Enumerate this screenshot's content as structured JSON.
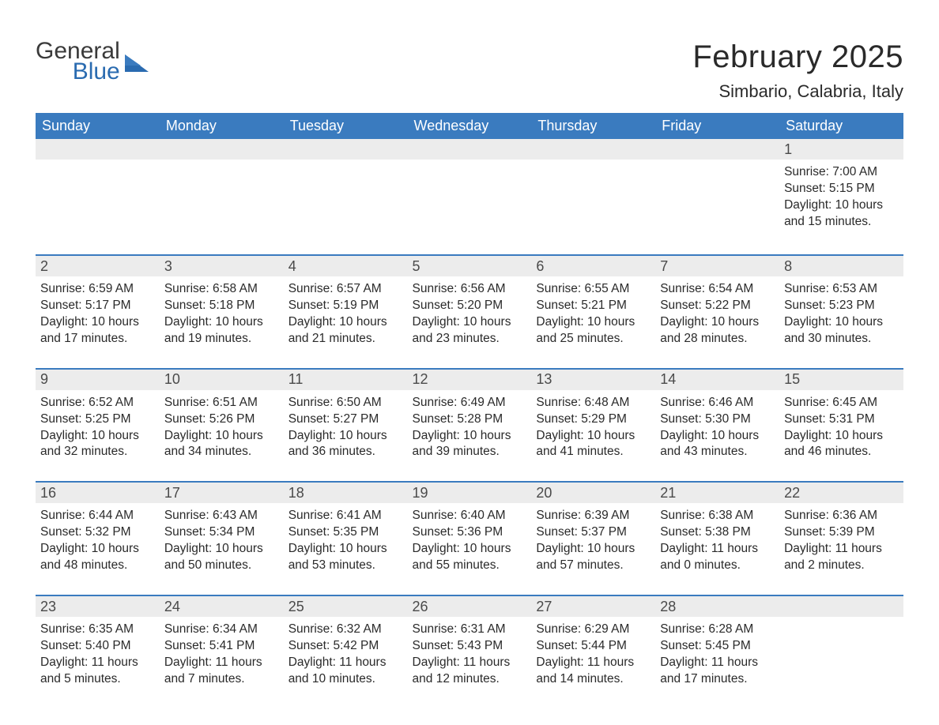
{
  "logo": {
    "word1": "General",
    "word2": "Blue"
  },
  "title": "February 2025",
  "location": "Simbario, Calabria, Italy",
  "colors": {
    "header_bg": "#3a7bbf",
    "header_text": "#ffffff",
    "daynum_bg": "#ececec",
    "text": "#2a2a2a",
    "logo_blue": "#2a6bb0",
    "page_bg": "#ffffff"
  },
  "fonts": {
    "title_size_pt": 30,
    "location_size_pt": 17,
    "dow_size_pt": 14,
    "daynum_size_pt": 14,
    "body_size_pt": 12
  },
  "dow": [
    "Sunday",
    "Monday",
    "Tuesday",
    "Wednesday",
    "Thursday",
    "Friday",
    "Saturday"
  ],
  "weeks": [
    [
      null,
      null,
      null,
      null,
      null,
      null,
      {
        "d": "1",
        "sunrise": "Sunrise: 7:00 AM",
        "sunset": "Sunset: 5:15 PM",
        "daylight": "Daylight: 10 hours and 15 minutes."
      }
    ],
    [
      {
        "d": "2",
        "sunrise": "Sunrise: 6:59 AM",
        "sunset": "Sunset: 5:17 PM",
        "daylight": "Daylight: 10 hours and 17 minutes."
      },
      {
        "d": "3",
        "sunrise": "Sunrise: 6:58 AM",
        "sunset": "Sunset: 5:18 PM",
        "daylight": "Daylight: 10 hours and 19 minutes."
      },
      {
        "d": "4",
        "sunrise": "Sunrise: 6:57 AM",
        "sunset": "Sunset: 5:19 PM",
        "daylight": "Daylight: 10 hours and 21 minutes."
      },
      {
        "d": "5",
        "sunrise": "Sunrise: 6:56 AM",
        "sunset": "Sunset: 5:20 PM",
        "daylight": "Daylight: 10 hours and 23 minutes."
      },
      {
        "d": "6",
        "sunrise": "Sunrise: 6:55 AM",
        "sunset": "Sunset: 5:21 PM",
        "daylight": "Daylight: 10 hours and 25 minutes."
      },
      {
        "d": "7",
        "sunrise": "Sunrise: 6:54 AM",
        "sunset": "Sunset: 5:22 PM",
        "daylight": "Daylight: 10 hours and 28 minutes."
      },
      {
        "d": "8",
        "sunrise": "Sunrise: 6:53 AM",
        "sunset": "Sunset: 5:23 PM",
        "daylight": "Daylight: 10 hours and 30 minutes."
      }
    ],
    [
      {
        "d": "9",
        "sunrise": "Sunrise: 6:52 AM",
        "sunset": "Sunset: 5:25 PM",
        "daylight": "Daylight: 10 hours and 32 minutes."
      },
      {
        "d": "10",
        "sunrise": "Sunrise: 6:51 AM",
        "sunset": "Sunset: 5:26 PM",
        "daylight": "Daylight: 10 hours and 34 minutes."
      },
      {
        "d": "11",
        "sunrise": "Sunrise: 6:50 AM",
        "sunset": "Sunset: 5:27 PM",
        "daylight": "Daylight: 10 hours and 36 minutes."
      },
      {
        "d": "12",
        "sunrise": "Sunrise: 6:49 AM",
        "sunset": "Sunset: 5:28 PM",
        "daylight": "Daylight: 10 hours and 39 minutes."
      },
      {
        "d": "13",
        "sunrise": "Sunrise: 6:48 AM",
        "sunset": "Sunset: 5:29 PM",
        "daylight": "Daylight: 10 hours and 41 minutes."
      },
      {
        "d": "14",
        "sunrise": "Sunrise: 6:46 AM",
        "sunset": "Sunset: 5:30 PM",
        "daylight": "Daylight: 10 hours and 43 minutes."
      },
      {
        "d": "15",
        "sunrise": "Sunrise: 6:45 AM",
        "sunset": "Sunset: 5:31 PM",
        "daylight": "Daylight: 10 hours and 46 minutes."
      }
    ],
    [
      {
        "d": "16",
        "sunrise": "Sunrise: 6:44 AM",
        "sunset": "Sunset: 5:32 PM",
        "daylight": "Daylight: 10 hours and 48 minutes."
      },
      {
        "d": "17",
        "sunrise": "Sunrise: 6:43 AM",
        "sunset": "Sunset: 5:34 PM",
        "daylight": "Daylight: 10 hours and 50 minutes."
      },
      {
        "d": "18",
        "sunrise": "Sunrise: 6:41 AM",
        "sunset": "Sunset: 5:35 PM",
        "daylight": "Daylight: 10 hours and 53 minutes."
      },
      {
        "d": "19",
        "sunrise": "Sunrise: 6:40 AM",
        "sunset": "Sunset: 5:36 PM",
        "daylight": "Daylight: 10 hours and 55 minutes."
      },
      {
        "d": "20",
        "sunrise": "Sunrise: 6:39 AM",
        "sunset": "Sunset: 5:37 PM",
        "daylight": "Daylight: 10 hours and 57 minutes."
      },
      {
        "d": "21",
        "sunrise": "Sunrise: 6:38 AM",
        "sunset": "Sunset: 5:38 PM",
        "daylight": "Daylight: 11 hours and 0 minutes."
      },
      {
        "d": "22",
        "sunrise": "Sunrise: 6:36 AM",
        "sunset": "Sunset: 5:39 PM",
        "daylight": "Daylight: 11 hours and 2 minutes."
      }
    ],
    [
      {
        "d": "23",
        "sunrise": "Sunrise: 6:35 AM",
        "sunset": "Sunset: 5:40 PM",
        "daylight": "Daylight: 11 hours and 5 minutes."
      },
      {
        "d": "24",
        "sunrise": "Sunrise: 6:34 AM",
        "sunset": "Sunset: 5:41 PM",
        "daylight": "Daylight: 11 hours and 7 minutes."
      },
      {
        "d": "25",
        "sunrise": "Sunrise: 6:32 AM",
        "sunset": "Sunset: 5:42 PM",
        "daylight": "Daylight: 11 hours and 10 minutes."
      },
      {
        "d": "26",
        "sunrise": "Sunrise: 6:31 AM",
        "sunset": "Sunset: 5:43 PM",
        "daylight": "Daylight: 11 hours and 12 minutes."
      },
      {
        "d": "27",
        "sunrise": "Sunrise: 6:29 AM",
        "sunset": "Sunset: 5:44 PM",
        "daylight": "Daylight: 11 hours and 14 minutes."
      },
      {
        "d": "28",
        "sunrise": "Sunrise: 6:28 AM",
        "sunset": "Sunset: 5:45 PM",
        "daylight": "Daylight: 11 hours and 17 minutes."
      },
      null
    ]
  ]
}
